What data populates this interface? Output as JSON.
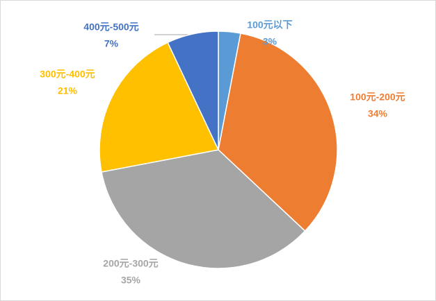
{
  "chart_data": {
    "type": "pie",
    "categories": [
      "100元以下",
      "100元-200元",
      "200元-300元",
      "300元-400元",
      "400元-500元"
    ],
    "values": [
      3,
      34,
      35,
      21,
      7
    ],
    "value_labels": [
      "3%",
      "34%",
      "35%",
      "21%",
      "7%"
    ],
    "colors": [
      "#5b9bd5",
      "#ed7d31",
      "#a5a5a5",
      "#ffc000",
      "#4472c4"
    ]
  }
}
